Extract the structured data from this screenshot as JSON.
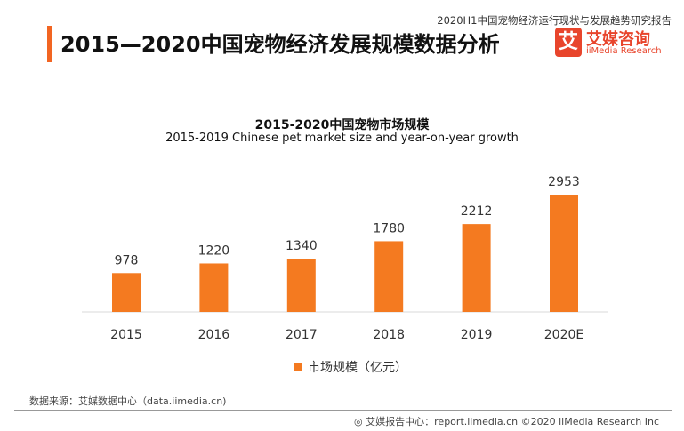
{
  "header": {
    "title": "2015—2020中国宠物经济发展规模数据分析",
    "report_name": "2020H1中国宠物经济运行现状与发展趋势研究报告",
    "logo_mark": "艾",
    "logo_cn": "艾媒咨询",
    "logo_en": "iiMedia Research"
  },
  "chart_data": {
    "type": "bar",
    "title": "2015-2020中国宠物市场规模",
    "subtitle": "2015-2019 Chinese pet market size and year-on-year growth",
    "categories": [
      "2015",
      "2016",
      "2017",
      "2018",
      "2019",
      "2020E"
    ],
    "series": [
      {
        "name": "市场规模（亿元）",
        "values": [
          978,
          1220,
          1340,
          1780,
          2212,
          2953
        ],
        "color": "#f47a20"
      }
    ],
    "legend": "bottom",
    "grid": false
  },
  "footer": {
    "source": "数据来源：艾媒数据中心（data.iimedia.cn)",
    "credit": "艾媒报告中心：report.iimedia.cn  ©2020  iiMedia Research  Inc"
  }
}
